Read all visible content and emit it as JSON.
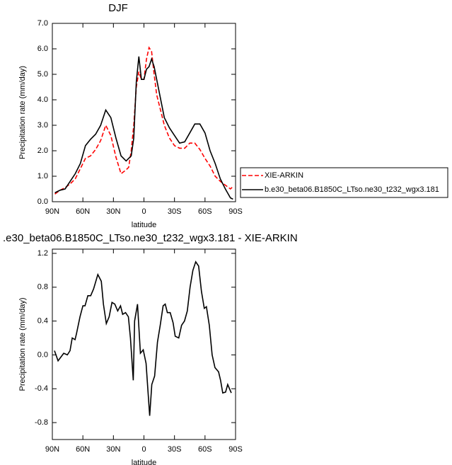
{
  "chart_data": [
    {
      "type": "line",
      "title": "DJF",
      "x_label": "latitude",
      "y_label": "Precipitation rate (mm/day)",
      "x": [
        87.5,
        82.5,
        77.5,
        72.5,
        67.5,
        62.5,
        57.5,
        52.5,
        47.5,
        42.5,
        37.5,
        32.5,
        27.5,
        22.5,
        17.5,
        15,
        12.5,
        10,
        7.5,
        5,
        2.5,
        0,
        -2.5,
        -5,
        -7.5,
        -10,
        -12.5,
        -15,
        -20,
        -25,
        -30,
        -35,
        -40,
        -45,
        -50,
        -55,
        -60,
        -65,
        -70,
        -75,
        -80,
        -85,
        -87.5
      ],
      "series": [
        {
          "name": "XIE-ARKIN",
          "color": "#ff0000",
          "line_style": "dashed",
          "values": [
            0.3,
            0.45,
            0.55,
            0.7,
            0.9,
            1.3,
            1.7,
            1.8,
            2.05,
            2.4,
            3.0,
            2.6,
            1.75,
            1.1,
            1.25,
            1.35,
            2.0,
            3.0,
            4.5,
            5.1,
            4.8,
            4.8,
            5.6,
            6.05,
            5.9,
            5.0,
            4.2,
            3.8,
            3.0,
            2.5,
            2.2,
            2.1,
            2.1,
            2.3,
            2.3,
            2.05,
            1.7,
            1.4,
            1.0,
            0.8,
            0.65,
            0.5,
            0.6
          ]
        },
        {
          "name": "b.e30_beta06.B1850C_LTso.ne30_t232_wgx3.181",
          "color": "#000000",
          "line_style": "solid",
          "values": [
            0.35,
            0.45,
            0.5,
            0.8,
            1.1,
            1.5,
            2.2,
            2.45,
            2.65,
            3.0,
            3.6,
            3.3,
            2.5,
            1.8,
            1.6,
            1.7,
            1.8,
            2.5,
            4.7,
            5.7,
            4.8,
            4.8,
            5.2,
            5.3,
            5.6,
            5.3,
            4.8,
            4.3,
            3.3,
            2.9,
            2.6,
            2.3,
            2.35,
            2.7,
            3.05,
            3.05,
            2.7,
            2.0,
            1.5,
            0.9,
            0.5,
            0.15,
            0.1
          ]
        }
      ],
      "xlim": [
        90,
        -90
      ],
      "xticks": [
        {
          "value": 90,
          "label": "90N"
        },
        {
          "value": 60,
          "label": "60N"
        },
        {
          "value": 30,
          "label": "30N"
        },
        0,
        {
          "value": -30,
          "label": "30S"
        },
        {
          "value": -60,
          "label": "60S"
        },
        {
          "value": -90,
          "label": "90S"
        }
      ],
      "ylim": [
        0,
        7
      ],
      "yticks": [
        {
          "value": 0,
          "label": "0.0"
        },
        {
          "value": 1,
          "label": "1.0"
        },
        {
          "value": 2,
          "label": "2.0"
        },
        {
          "value": 3,
          "label": "3.0"
        },
        {
          "value": 4,
          "label": "4.0"
        },
        {
          "value": 5,
          "label": "5.0"
        },
        {
          "value": 6,
          "label": "6.0"
        },
        {
          "value": 7,
          "label": "7.0"
        }
      ],
      "legend": "right"
    },
    {
      "type": "line",
      "title": ".e30_beta06.B1850C_LTso.ne30_t232_wgx3.181 - XIE-ARKIN",
      "x_label": "latitude",
      "y_label": "Precipitation rate (mm/day)",
      "x": [
        87.9,
        84.4,
        78.8,
        75.3,
        72.6,
        70.5,
        67.7,
        66.3,
        62.8,
        60.0,
        57.9,
        55.1,
        52.3,
        49.5,
        45.3,
        41.9,
        39.8,
        37.0,
        34.2,
        31.4,
        28.6,
        25.8,
        23.0,
        20.9,
        18.1,
        15.3,
        13.3,
        10.5,
        9.2,
        6.3,
        3.5,
        0.7,
        -2.1,
        -5.6,
        -7.7,
        -10.5,
        -13.3,
        -16.0,
        -18.8,
        -20.9,
        -23.0,
        -25.8,
        -28.6,
        -30.7,
        -34.2,
        -37.0,
        -39.8,
        -42.6,
        -45.3,
        -48.1,
        -50.9,
        -53.7,
        -56.5,
        -59.3,
        -61.4,
        -64.2,
        -67.0,
        -69.8,
        -73.3,
        -75.3,
        -77.4,
        -80.2,
        -82.3,
        -85.8
      ],
      "series": [
        {
          "color": "#000000",
          "line_style": "solid",
          "values": [
            0.05,
            -0.07,
            0.02,
            0.0,
            0.05,
            0.2,
            0.18,
            0.25,
            0.45,
            0.58,
            0.58,
            0.7,
            0.7,
            0.78,
            0.95,
            0.87,
            0.6,
            0.37,
            0.45,
            0.62,
            0.6,
            0.52,
            0.58,
            0.48,
            0.5,
            0.45,
            0.2,
            -0.3,
            0.4,
            0.6,
            0.02,
            0.06,
            -0.1,
            -0.72,
            -0.35,
            -0.25,
            0.15,
            0.35,
            0.58,
            0.6,
            0.5,
            0.5,
            0.38,
            0.22,
            0.2,
            0.35,
            0.4,
            0.52,
            0.8,
            1.0,
            1.1,
            1.05,
            0.75,
            0.55,
            0.57,
            0.35,
            0.0,
            -0.15,
            -0.2,
            -0.3,
            -0.45,
            -0.44,
            -0.35,
            -0.45
          ]
        }
      ],
      "xlim": [
        90,
        -90
      ],
      "xticks": [
        {
          "value": 90,
          "label": "90N"
        },
        {
          "value": 60,
          "label": "60N"
        },
        {
          "value": 30,
          "label": "30N"
        },
        0,
        {
          "value": -30,
          "label": "30S"
        },
        {
          "value": -60,
          "label": "60S"
        },
        {
          "value": -90,
          "label": "90S"
        }
      ],
      "ylim": [
        -1.0,
        1.25
      ],
      "yticks": [
        {
          "value": -0.8,
          "label": "-0.8"
        },
        -0.4,
        {
          "value": 0,
          "label": "0.0"
        },
        0.4,
        0.8,
        1.2
      ]
    }
  ]
}
